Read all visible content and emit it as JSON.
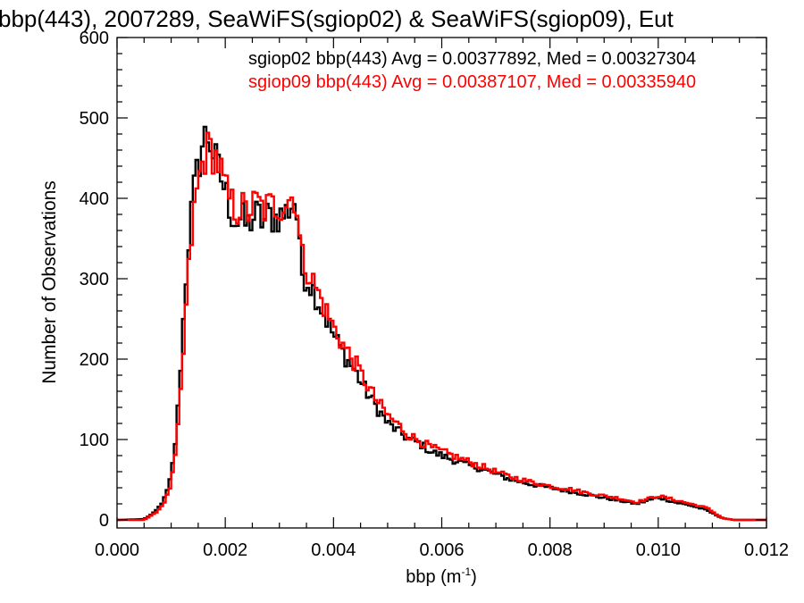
{
  "chart_data": {
    "type": "line",
    "title": "bbp(443), 2007289, SeaWiFS(sgiop02) & SeaWiFS(sgiop09), Eut",
    "xlabel": "bbp (m",
    "xlabel_sup": "-1",
    "xlabel_end": ")",
    "ylabel": "Number of Observations",
    "xlim": [
      0.0,
      0.012
    ],
    "ylim": [
      -10,
      600
    ],
    "xticks": [
      "0.000",
      "0.002",
      "0.004",
      "0.006",
      "0.008",
      "0.010",
      "0.012"
    ],
    "yticks": [
      "0",
      "100",
      "200",
      "300",
      "400",
      "500",
      "600"
    ],
    "grid": false,
    "legend_position": "top-right",
    "stats": [
      {
        "text": "sgiop02 bbp(443) Avg = 0.00377892, Med = 0.00327304",
        "color": "#000000"
      },
      {
        "text": "sgiop09 bbp(443) Avg = 0.00387107, Med = 0.00335940",
        "color": "#ff0000"
      }
    ],
    "bin_width": 5e-05,
    "series": [
      {
        "name": "sgiop02",
        "color": "#000000",
        "x": [
          0.0,
          0.0005,
          0.0006,
          0.0007,
          0.0008,
          0.0009,
          0.001,
          0.0011,
          0.0012,
          0.0013,
          0.0014,
          0.0015,
          0.0016,
          0.0017,
          0.0018,
          0.0019,
          0.002,
          0.0021,
          0.0022,
          0.0023,
          0.0024,
          0.0025,
          0.0026,
          0.0027,
          0.0028,
          0.0029,
          0.003,
          0.0031,
          0.0032,
          0.0033,
          0.0034,
          0.0035,
          0.0036,
          0.0037,
          0.0038,
          0.004,
          0.0042,
          0.0044,
          0.0046,
          0.0048,
          0.005,
          0.0052,
          0.0054,
          0.0056,
          0.0058,
          0.006,
          0.0064,
          0.0068,
          0.0072,
          0.0076,
          0.008,
          0.0084,
          0.0088,
          0.0092,
          0.0096,
          0.01,
          0.0103,
          0.0106,
          0.0109,
          0.0111,
          0.0112,
          0.0114,
          0.012
        ],
        "y": [
          0,
          1,
          5,
          10,
          18,
          30,
          55,
          110,
          220,
          330,
          400,
          440,
          475,
          478,
          450,
          430,
          410,
          385,
          370,
          375,
          365,
          375,
          380,
          370,
          380,
          375,
          378,
          380,
          390,
          400,
          310,
          300,
          290,
          275,
          260,
          230,
          205,
          185,
          160,
          140,
          120,
          110,
          100,
          95,
          85,
          80,
          70,
          62,
          52,
          45,
          40,
          35,
          30,
          25,
          20,
          28,
          22,
          18,
          12,
          5,
          2,
          0,
          0
        ]
      },
      {
        "name": "sgiop09",
        "color": "#ff0000",
        "x": [
          0.0,
          0.0005,
          0.0006,
          0.0007,
          0.0008,
          0.0009,
          0.001,
          0.0011,
          0.0012,
          0.0013,
          0.0014,
          0.0015,
          0.0016,
          0.0017,
          0.0018,
          0.0019,
          0.002,
          0.0021,
          0.0022,
          0.0023,
          0.0024,
          0.0025,
          0.0026,
          0.0027,
          0.0028,
          0.0029,
          0.003,
          0.0031,
          0.0032,
          0.0033,
          0.0034,
          0.0035,
          0.0036,
          0.0037,
          0.0038,
          0.004,
          0.0042,
          0.0044,
          0.0046,
          0.0048,
          0.005,
          0.0052,
          0.0054,
          0.0056,
          0.0058,
          0.006,
          0.0064,
          0.0068,
          0.0072,
          0.0076,
          0.008,
          0.0084,
          0.0088,
          0.0092,
          0.0096,
          0.01,
          0.0103,
          0.0106,
          0.0109,
          0.0111,
          0.0112,
          0.0114,
          0.012
        ],
        "y": [
          0,
          0,
          4,
          8,
          15,
          25,
          45,
          90,
          180,
          290,
          370,
          420,
          450,
          462,
          455,
          440,
          410,
          395,
          385,
          390,
          380,
          390,
          395,
          385,
          390,
          390,
          392,
          395,
          400,
          405,
          330,
          315,
          300,
          285,
          270,
          240,
          215,
          195,
          170,
          148,
          130,
          118,
          105,
          98,
          90,
          85,
          75,
          65,
          55,
          48,
          42,
          38,
          32,
          28,
          22,
          30,
          25,
          20,
          15,
          6,
          2,
          0,
          0
        ]
      }
    ]
  }
}
